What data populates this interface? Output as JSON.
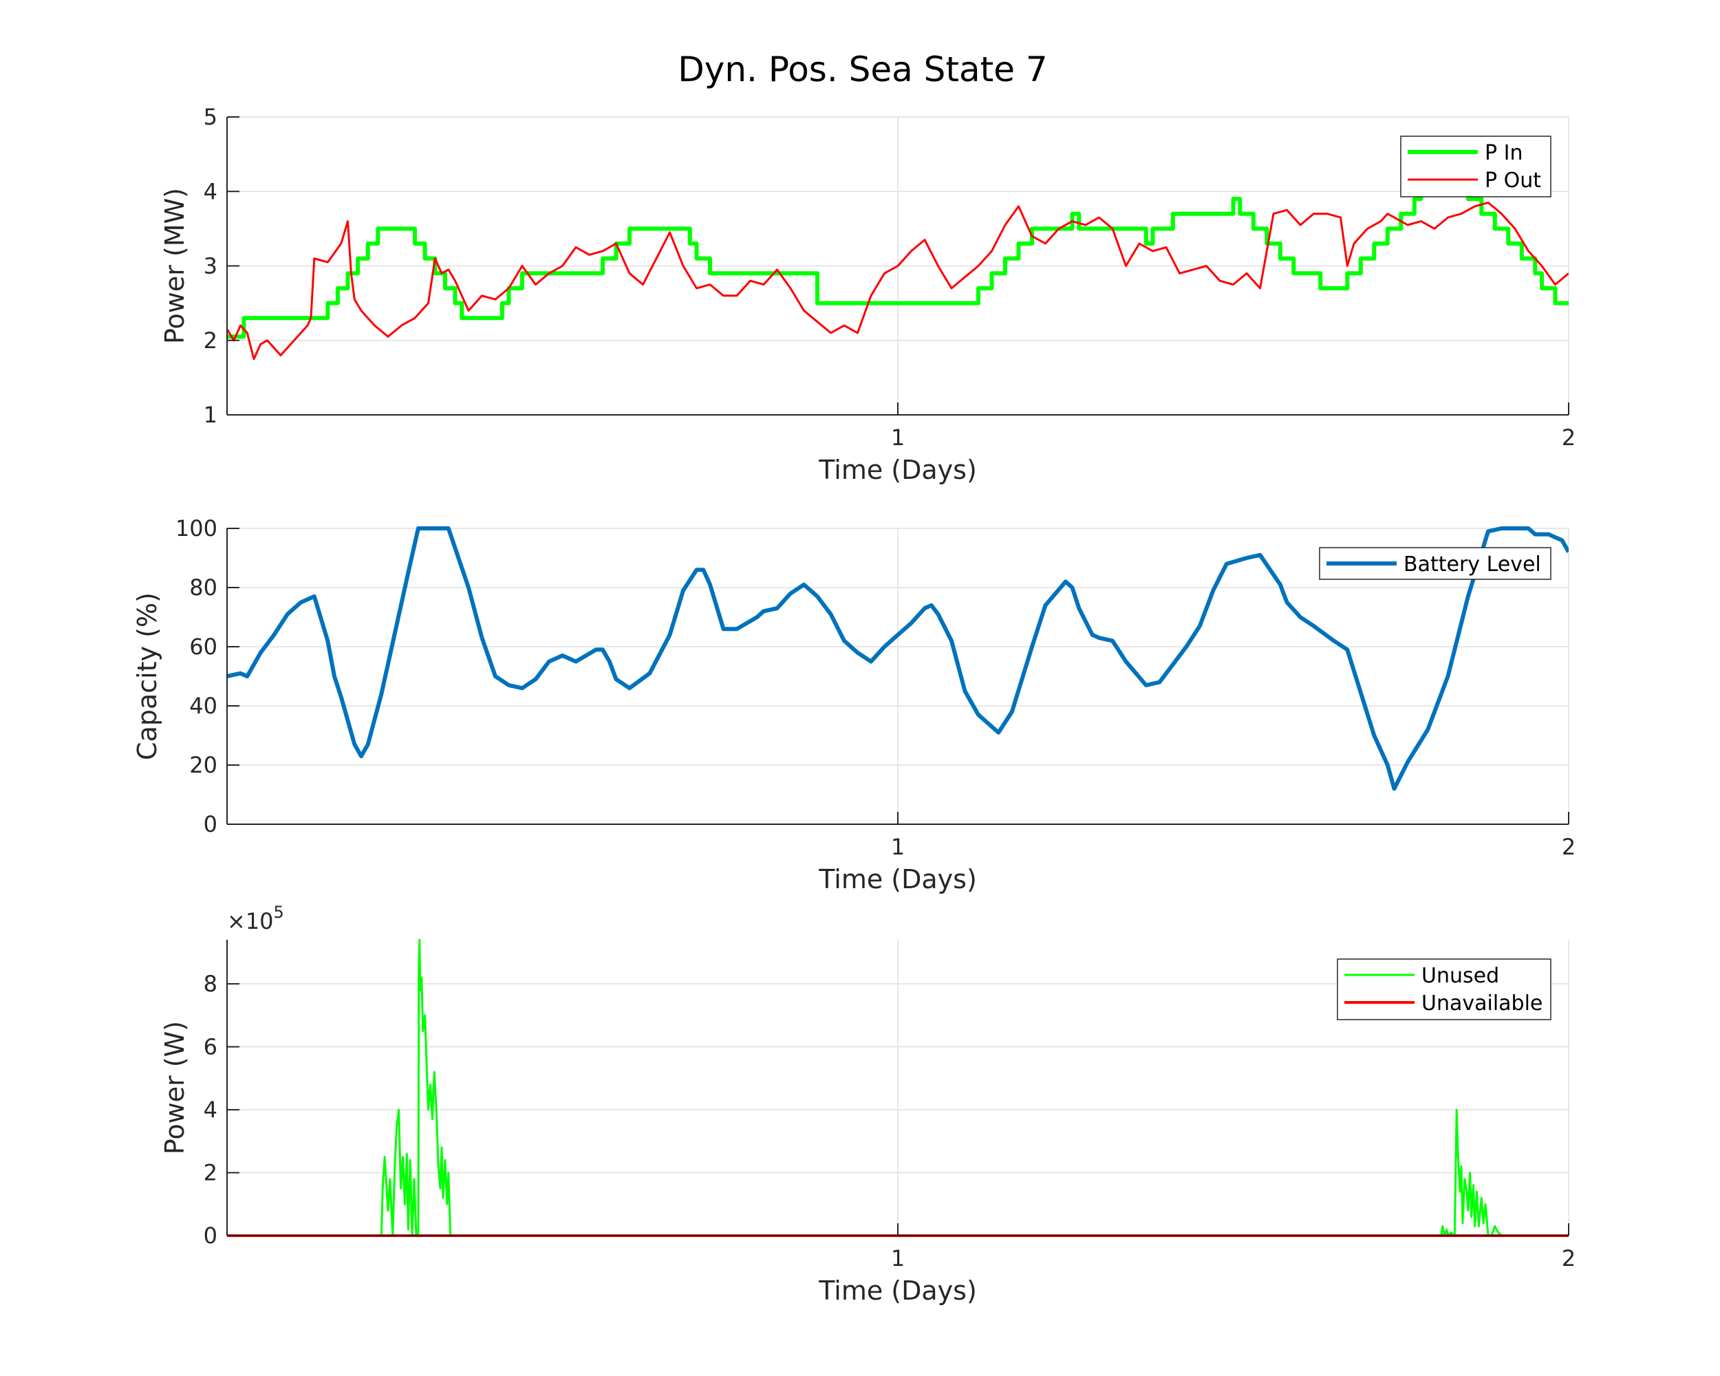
{
  "figure": {
    "title": "Dyn. Pos. Sea State 7"
  },
  "chart_data": [
    {
      "type": "line",
      "id": "power-mw",
      "xlabel": "Time (Days)",
      "ylabel": "Power (MW)",
      "xlim": [
        0,
        2
      ],
      "ylim": [
        1,
        5
      ],
      "xticks": [
        "1",
        "2"
      ],
      "yticks": [
        "1",
        "2",
        "3",
        "4",
        "5"
      ],
      "grid": true,
      "legend": "top-right",
      "series": [
        {
          "name": "P In",
          "color": "#00ff00",
          "style": "step",
          "x": [
            0,
            0.025,
            0.125,
            0.15,
            0.165,
            0.18,
            0.195,
            0.21,
            0.225,
            0.28,
            0.295,
            0.31,
            0.325,
            0.34,
            0.35,
            0.41,
            0.42,
            0.44,
            0.49,
            0.56,
            0.58,
            0.6,
            0.62,
            0.69,
            0.7,
            0.72,
            0.86,
            0.88,
            1.1,
            1.12,
            1.14,
            1.16,
            1.18,
            1.2,
            1.26,
            1.27,
            1.37,
            1.38,
            1.41,
            1.5,
            1.51,
            1.53,
            1.55,
            1.57,
            1.59,
            1.63,
            1.65,
            1.67,
            1.69,
            1.71,
            1.73,
            1.75,
            1.77,
            1.78,
            1.85,
            1.87,
            1.89,
            1.91,
            1.93,
            1.95,
            1.96,
            1.98
          ],
          "y": [
            2.05,
            2.3,
            2.3,
            2.5,
            2.7,
            2.9,
            3.1,
            3.3,
            3.5,
            3.3,
            3.1,
            2.9,
            2.7,
            2.5,
            2.3,
            2.5,
            2.7,
            2.9,
            2.9,
            3.1,
            3.3,
            3.5,
            3.5,
            3.3,
            3.1,
            2.9,
            2.9,
            2.5,
            2.5,
            2.7,
            2.9,
            3.1,
            3.3,
            3.5,
            3.7,
            3.5,
            3.3,
            3.5,
            3.7,
            3.9,
            3.7,
            3.5,
            3.3,
            3.1,
            2.9,
            2.7,
            2.7,
            2.9,
            3.1,
            3.3,
            3.5,
            3.7,
            3.9,
            4.0,
            3.9,
            3.7,
            3.5,
            3.3,
            3.1,
            2.9,
            2.7,
            2.5
          ]
        },
        {
          "name": "P Out",
          "color": "#ff0000",
          "style": "line",
          "x": [
            0,
            0.01,
            0.02,
            0.03,
            0.04,
            0.05,
            0.06,
            0.08,
            0.1,
            0.12,
            0.125,
            0.13,
            0.15,
            0.17,
            0.18,
            0.185,
            0.19,
            0.2,
            0.22,
            0.24,
            0.26,
            0.28,
            0.3,
            0.31,
            0.32,
            0.33,
            0.34,
            0.36,
            0.38,
            0.4,
            0.42,
            0.44,
            0.46,
            0.48,
            0.5,
            0.52,
            0.54,
            0.56,
            0.58,
            0.6,
            0.62,
            0.64,
            0.66,
            0.68,
            0.7,
            0.72,
            0.74,
            0.76,
            0.78,
            0.8,
            0.82,
            0.84,
            0.86,
            0.88,
            0.9,
            0.92,
            0.94,
            0.96,
            0.98,
            1.0,
            1.02,
            1.04,
            1.06,
            1.08,
            1.1,
            1.12,
            1.14,
            1.16,
            1.18,
            1.2,
            1.22,
            1.24,
            1.26,
            1.28,
            1.3,
            1.32,
            1.34,
            1.36,
            1.38,
            1.4,
            1.42,
            1.44,
            1.46,
            1.48,
            1.5,
            1.52,
            1.54,
            1.56,
            1.58,
            1.6,
            1.62,
            1.64,
            1.66,
            1.67,
            1.68,
            1.7,
            1.72,
            1.73,
            1.74,
            1.76,
            1.78,
            1.8,
            1.82,
            1.84,
            1.86,
            1.88,
            1.9,
            1.92,
            1.94,
            1.96,
            1.98,
            2.0
          ],
          "y": [
            2.15,
            2.0,
            2.2,
            2.1,
            1.75,
            1.95,
            2.0,
            1.8,
            2.0,
            2.2,
            2.3,
            3.1,
            3.05,
            3.3,
            3.6,
            2.9,
            2.55,
            2.4,
            2.2,
            2.05,
            2.2,
            2.3,
            2.5,
            3.1,
            2.9,
            2.95,
            2.8,
            2.4,
            2.6,
            2.55,
            2.7,
            3.0,
            2.75,
            2.9,
            3.0,
            3.25,
            3.15,
            3.2,
            3.3,
            2.9,
            2.75,
            3.1,
            3.45,
            3.0,
            2.7,
            2.75,
            2.6,
            2.6,
            2.8,
            2.75,
            2.95,
            2.7,
            2.4,
            2.25,
            2.1,
            2.2,
            2.1,
            2.6,
            2.9,
            3.0,
            3.2,
            3.35,
            3.0,
            2.7,
            2.85,
            3.0,
            3.2,
            3.55,
            3.8,
            3.4,
            3.3,
            3.5,
            3.6,
            3.55,
            3.65,
            3.5,
            3.0,
            3.3,
            3.2,
            3.25,
            2.9,
            2.95,
            3.0,
            2.8,
            2.75,
            2.9,
            2.7,
            3.7,
            3.75,
            3.55,
            3.7,
            3.7,
            3.65,
            3.0,
            3.3,
            3.5,
            3.6,
            3.7,
            3.65,
            3.55,
            3.6,
            3.5,
            3.65,
            3.7,
            3.8,
            3.85,
            3.7,
            3.5,
            3.2,
            3.0,
            2.75,
            2.9
          ]
        }
      ]
    },
    {
      "type": "line",
      "id": "battery-capacity",
      "xlabel": "Time (Days)",
      "ylabel": "Capacity (%)",
      "xlim": [
        0,
        2
      ],
      "ylim": [
        0,
        100
      ],
      "xticks": [
        "1",
        "2"
      ],
      "yticks": [
        "0",
        "20",
        "40",
        "60",
        "80",
        "100"
      ],
      "grid": true,
      "legend": "top-right",
      "series": [
        {
          "name": "Battery Level",
          "color": "#0072bd",
          "style": "line",
          "x": [
            0,
            0.02,
            0.03,
            0.05,
            0.07,
            0.09,
            0.11,
            0.13,
            0.15,
            0.16,
            0.17,
            0.19,
            0.2,
            0.21,
            0.23,
            0.27,
            0.285,
            0.29,
            0.3,
            0.33,
            0.345,
            0.36,
            0.38,
            0.4,
            0.42,
            0.44,
            0.46,
            0.47,
            0.48,
            0.5,
            0.52,
            0.55,
            0.56,
            0.57,
            0.58,
            0.6,
            0.63,
            0.66,
            0.68,
            0.7,
            0.71,
            0.72,
            0.74,
            0.76,
            0.79,
            0.8,
            0.82,
            0.84,
            0.86,
            0.88,
            0.9,
            0.92,
            0.94,
            0.96,
            0.98,
            1.0,
            1.02,
            1.04,
            1.05,
            1.06,
            1.08,
            1.1,
            1.12,
            1.15,
            1.17,
            1.2,
            1.22,
            1.25,
            1.26,
            1.27,
            1.29,
            1.3,
            1.32,
            1.34,
            1.37,
            1.39,
            1.41,
            1.43,
            1.45,
            1.47,
            1.49,
            1.52,
            1.54,
            1.57,
            1.58,
            1.6,
            1.62,
            1.65,
            1.67,
            1.71,
            1.73,
            1.74,
            1.76,
            1.79,
            1.82,
            1.85,
            1.88,
            1.9,
            1.92,
            1.94,
            1.95,
            1.97,
            1.99,
            2.0
          ],
          "y": [
            50,
            51,
            50,
            58,
            64,
            71,
            75,
            77,
            62,
            50,
            43,
            27,
            23,
            27,
            44,
            85,
            100,
            100,
            100,
            100,
            90,
            80,
            63,
            50,
            47,
            46,
            49,
            52,
            55,
            57,
            55,
            59,
            59,
            55,
            49,
            46,
            51,
            64,
            79,
            86,
            86,
            81,
            66,
            66,
            70,
            72,
            73,
            78,
            81,
            77,
            71,
            62,
            58,
            55,
            60,
            64,
            68,
            73,
            74,
            71,
            62,
            45,
            37,
            31,
            38,
            60,
            74,
            82,
            80,
            73,
            64,
            63,
            62,
            55,
            47,
            48,
            54,
            60,
            67,
            79,
            88,
            90,
            91,
            81,
            75,
            70,
            67,
            62,
            59,
            30,
            20,
            12,
            21,
            32,
            50,
            77,
            99,
            100,
            100,
            100,
            98,
            98,
            96,
            92
          ]
        }
      ]
    },
    {
      "type": "line",
      "id": "power-w",
      "xlabel": "Time (Days)",
      "ylabel": "Power (W)",
      "exponent_label": "×10",
      "exponent_power": "5",
      "xlim": [
        0,
        2
      ],
      "ylim": [
        0,
        9.4
      ],
      "xticks": [
        "1",
        "2"
      ],
      "yticks": [
        "0",
        "2",
        "4",
        "6",
        "8"
      ],
      "grid": true,
      "legend": "top-right",
      "series": [
        {
          "name": "Unused",
          "color": "#00ff00",
          "style": "line",
          "x": [
            0,
            0.23,
            0.232,
            0.235,
            0.24,
            0.243,
            0.247,
            0.25,
            0.253,
            0.256,
            0.259,
            0.262,
            0.265,
            0.268,
            0.27,
            0.273,
            0.276,
            0.279,
            0.282,
            0.285,
            0.286,
            0.287,
            0.288,
            0.29,
            0.292,
            0.295,
            0.298,
            0.3,
            0.303,
            0.306,
            0.309,
            0.312,
            0.315,
            0.318,
            0.32,
            0.322,
            0.325,
            0.328,
            0.33,
            0.333,
            0.335,
            1.81,
            1.812,
            1.815,
            1.818,
            1.82,
            1.825,
            1.828,
            1.83,
            1.833,
            1.835,
            1.838,
            1.84,
            1.842,
            1.845,
            1.848,
            1.85,
            1.853,
            1.855,
            1.858,
            1.86,
            1.863,
            1.866,
            1.87,
            1.873,
            1.876,
            1.88,
            1.885,
            1.89,
            1.895,
            1.9,
            2.0
          ],
          "y": [
            0,
            0,
            1.5,
            2.5,
            0.8,
            1.8,
            0,
            2.2,
            3.5,
            4.0,
            1.5,
            2.5,
            1.0,
            2.6,
            0.2,
            2.4,
            0,
            1.8,
            0,
            0,
            8.6,
            9.4,
            7.8,
            8.2,
            6.5,
            7.0,
            5.2,
            4.0,
            4.8,
            3.7,
            5.2,
            4.0,
            2.2,
            1.5,
            2.8,
            1.2,
            2.4,
            1.0,
            2.0,
            0,
            0,
            0,
            0.3,
            0,
            0.2,
            0,
            0.1,
            0,
            0,
            4.0,
            2.6,
            1.4,
            2.2,
            0.4,
            1.8,
            1.4,
            0.8,
            2.0,
            0.6,
            1.6,
            0.3,
            1.4,
            0.3,
            1.2,
            0.4,
            1.0,
            0,
            0,
            0.3,
            0.1,
            0,
            0
          ]
        },
        {
          "name": "Unavailable",
          "color": "#ff0000",
          "style": "line",
          "x": [
            0,
            2
          ],
          "y": [
            0,
            0
          ]
        }
      ]
    }
  ]
}
